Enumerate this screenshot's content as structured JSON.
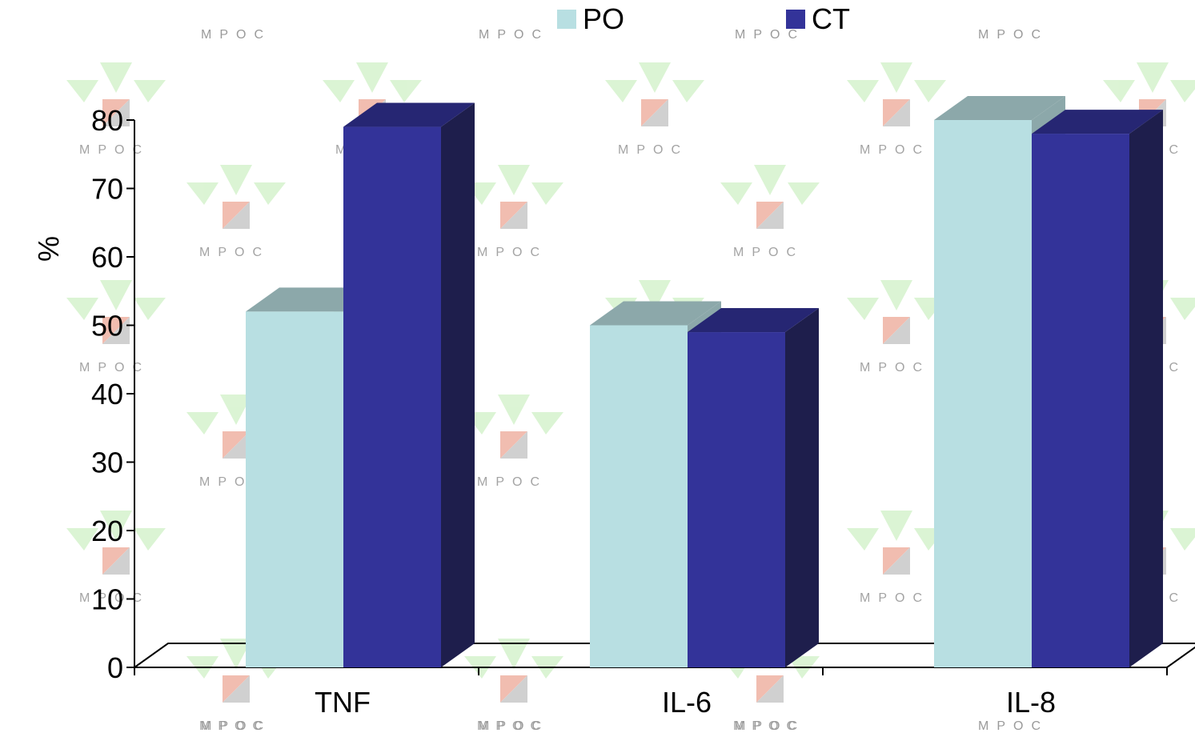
{
  "chart_data": {
    "type": "bar",
    "style": "3d-clustered-column",
    "categories": [
      "TNF",
      "IL-6",
      "IL-8"
    ],
    "series": [
      {
        "name": "PO",
        "values": [
          52,
          50,
          80
        ],
        "color": "#b8dfe2",
        "top_color": "#8ca8aa"
      },
      {
        "name": "CT",
        "values": [
          79,
          49,
          78
        ],
        "color": "#333399",
        "top_color": "#262673",
        "side_color": "#1e1e4c"
      }
    ],
    "ylabel": "%",
    "xlabel": "",
    "ylim": [
      0,
      80
    ],
    "yticks": [
      "0",
      "10",
      "20",
      "30",
      "40",
      "50",
      "60",
      "70",
      "80"
    ],
    "grid": false,
    "legend_position": "top-center"
  },
  "watermark": {
    "text": "MPOC",
    "colors": {
      "arrows": "#d8f3d0",
      "square_a": "#f0b6a8",
      "square_b": "#cccccc"
    }
  }
}
